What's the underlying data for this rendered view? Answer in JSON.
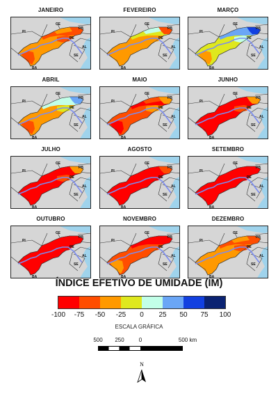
{
  "months": [
    {
      "name": "JANEIRO",
      "scheme": "jan"
    },
    {
      "name": "FEVEREIRO",
      "scheme": "fev"
    },
    {
      "name": "MARÇO",
      "scheme": "mar"
    },
    {
      "name": "ABRIL",
      "scheme": "abr"
    },
    {
      "name": "MAIO",
      "scheme": "mai"
    },
    {
      "name": "JUNHO",
      "scheme": "jun"
    },
    {
      "name": "JULHO",
      "scheme": "jul"
    },
    {
      "name": "AGOSTO",
      "scheme": "ago"
    },
    {
      "name": "SETEMBRO",
      "scheme": "set"
    },
    {
      "name": "OUTUBRO",
      "scheme": "out"
    },
    {
      "name": "NOVEMBRO",
      "scheme": "nov"
    },
    {
      "name": "DEZEMBRO",
      "scheme": "dez"
    }
  ],
  "state_labels": [
    "PI",
    "CE",
    "PB",
    "PE",
    "AL",
    "SE",
    "BA"
  ],
  "legend": {
    "title": "ÍNDICE EFETIVO DE UMIDADE (IM)",
    "colors": [
      "#ff0000",
      "#ff4d00",
      "#ff9900",
      "#dfe81e",
      "#c2ffe8",
      "#6aa6f6",
      "#1240e0",
      "#0a2272"
    ],
    "ticks": [
      "-100",
      "-75",
      "-50",
      "-25",
      "0",
      "25",
      "50",
      "75",
      "100"
    ]
  },
  "scale": {
    "title": "ESCALA GRÁFICA",
    "labels": [
      "500",
      "250",
      "0",
      "500 km"
    ]
  },
  "north_label": "N",
  "colors": {
    "land": "#d6d6d6",
    "sea": "#9fd3ec",
    "river": "#7b8cf0"
  }
}
